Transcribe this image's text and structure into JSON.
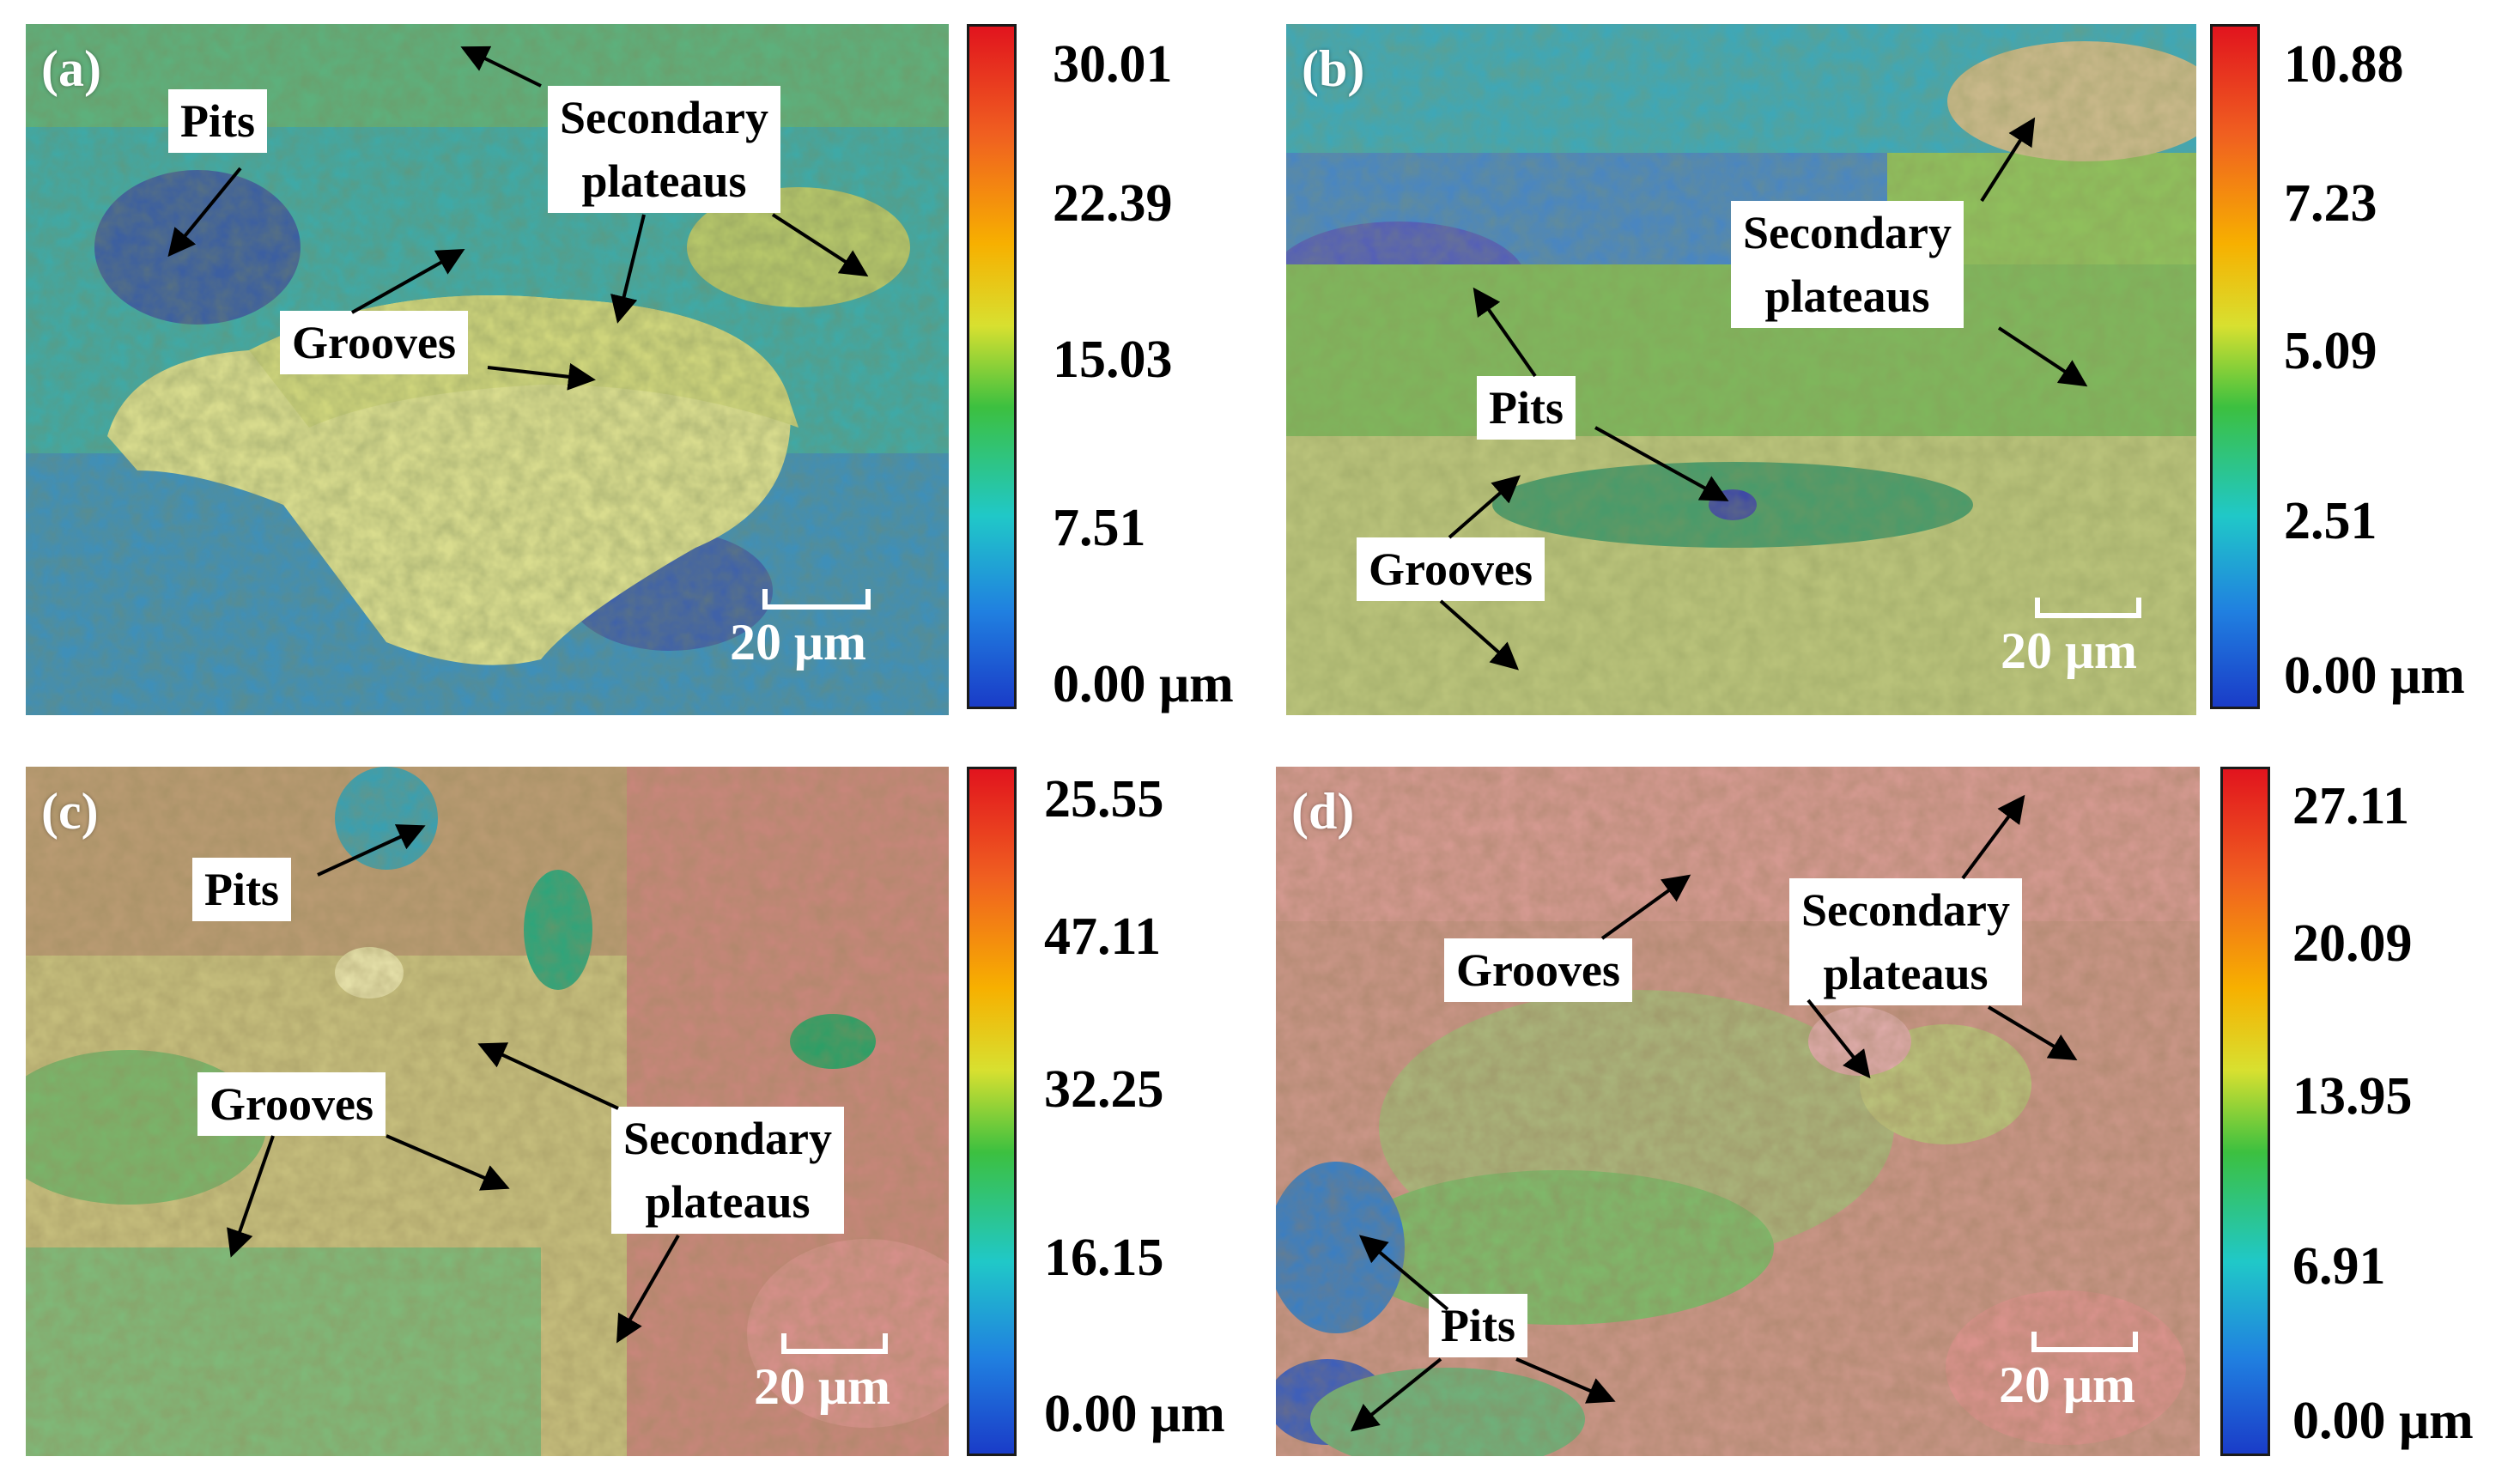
{
  "panels": [
    {
      "letter": "(a)",
      "scalebar": "20 μm",
      "colorbar_ticks": [
        "30.01",
        "22.39",
        "15.03",
        "7.51",
        "0.00 μm"
      ],
      "labels": {
        "pits": "Pits",
        "secondary_1": "Secondary",
        "secondary_2": "plateaus",
        "grooves": "Grooves"
      }
    },
    {
      "letter": "(b)",
      "scalebar": "20 μm",
      "colorbar_ticks": [
        "10.88",
        "7.23",
        "5.09",
        "2.51",
        "0.00 μm"
      ],
      "labels": {
        "pits": "Pits",
        "secondary_1": "Secondary",
        "secondary_2": "plateaus",
        "grooves": "Grooves"
      }
    },
    {
      "letter": "(c)",
      "scalebar": "20 μm",
      "colorbar_ticks": [
        "25.55",
        "47.11",
        "32.25",
        "16.15",
        "0.00 μm"
      ],
      "labels": {
        "pits": "Pits",
        "secondary_1": "Secondary",
        "secondary_2": "plateaus",
        "grooves": "Grooves"
      }
    },
    {
      "letter": "(d)",
      "scalebar": "20 μm",
      "colorbar_ticks": [
        "27.11",
        "20.09",
        "13.95",
        "6.91",
        "0.00 μm"
      ],
      "labels": {
        "pits": "Pits",
        "secondary_1": "Secondary",
        "secondary_2": "plateaus",
        "grooves": "Grooves"
      }
    }
  ]
}
